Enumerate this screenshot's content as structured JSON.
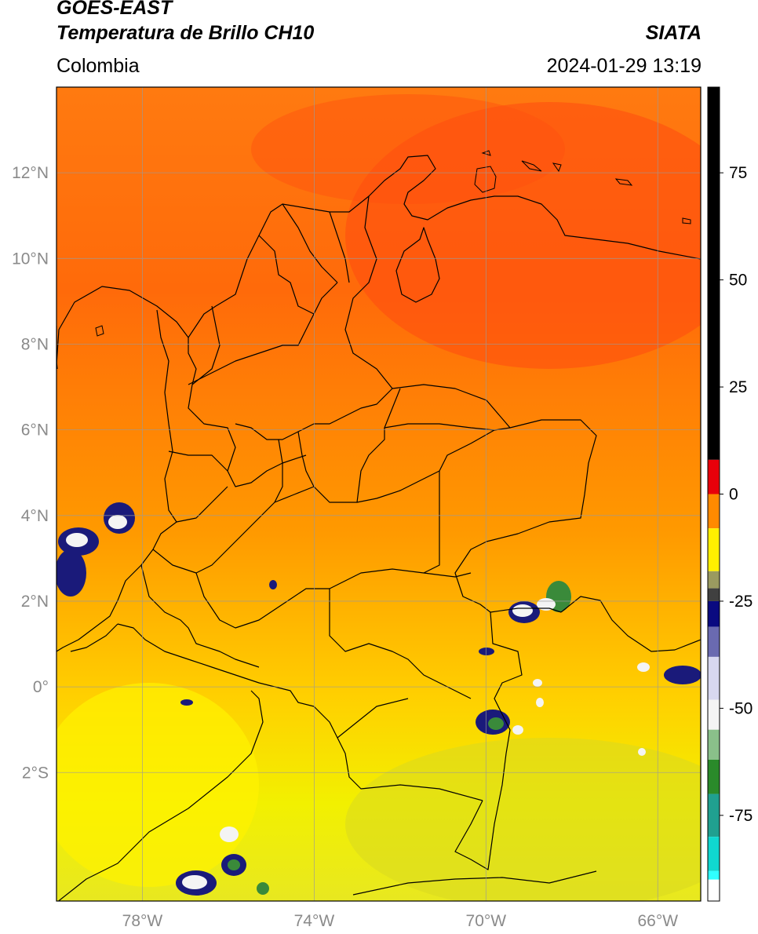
{
  "header": {
    "satellite": "GOES-EAST",
    "product": "Temperatura de Brillo CH10",
    "brand": "SIATA",
    "region": "Colombia",
    "datetime": "2024-01-29 13:19"
  },
  "map": {
    "lon_range": [
      -80,
      -65
    ],
    "lat_range": [
      -5,
      14
    ],
    "lat_labels": [
      {
        "lat": 12,
        "label": "12°N"
      },
      {
        "lat": 10,
        "label": "10°N"
      },
      {
        "lat": 8,
        "label": "8°N"
      },
      {
        "lat": 6,
        "label": "6°N"
      },
      {
        "lat": 4,
        "label": "4°N"
      },
      {
        "lat": 2,
        "label": "2°N"
      },
      {
        "lat": 0,
        "label": "0°"
      },
      {
        "lat": -2,
        "label": "2°S"
      }
    ],
    "lon_labels": [
      {
        "lon": -78,
        "label": "78°W"
      },
      {
        "lon": -74,
        "label": "74°W"
      },
      {
        "lon": -70,
        "label": "70°W"
      },
      {
        "lon": -66,
        "label": "66°W"
      }
    ],
    "colors": {
      "warm_north": "#ff4a10",
      "mid": "#ff9a00",
      "cool_south": "#fff000",
      "cloud_dark": "#1a1a7a",
      "cloud_white": "#f4f4f4",
      "cloud_green": "#3a8a3a",
      "border": "#000000",
      "grid": "#9a9a9a"
    }
  },
  "colorbar": {
    "ticks": [
      {
        "value": 75,
        "label": "75"
      },
      {
        "value": 50,
        "label": "50"
      },
      {
        "value": 25,
        "label": "25"
      },
      {
        "value": 0,
        "label": "0"
      },
      {
        "value": -25,
        "label": "-25"
      },
      {
        "value": -50,
        "label": "-50"
      },
      {
        "value": -75,
        "label": "-75"
      }
    ],
    "range": [
      -95,
      95
    ],
    "segments": [
      {
        "from": 8,
        "to": 95,
        "color": "#000000"
      },
      {
        "from": 0,
        "to": 8,
        "color": "#e8000a"
      },
      {
        "from": -8,
        "to": 0,
        "color": "#ff8a00"
      },
      {
        "from": -18,
        "to": -8,
        "color": "#fff000"
      },
      {
        "from": -22,
        "to": -18,
        "color": "#9a9a60"
      },
      {
        "from": -25,
        "to": -22,
        "color": "#404040"
      },
      {
        "from": -31,
        "to": -25,
        "color": "#0a0a80"
      },
      {
        "from": -38,
        "to": -31,
        "color": "#6a6ab0"
      },
      {
        "from": -48,
        "to": -38,
        "color": "#d8d8f0"
      },
      {
        "from": -55,
        "to": -48,
        "color": "#f4f4f4"
      },
      {
        "from": -62,
        "to": -55,
        "color": "#8ac08a"
      },
      {
        "from": -70,
        "to": -62,
        "color": "#2a8a2a"
      },
      {
        "from": -80,
        "to": -70,
        "color": "#20a090"
      },
      {
        "from": -88,
        "to": -80,
        "color": "#10d8d0"
      },
      {
        "from": -90,
        "to": -88,
        "color": "#30ffff"
      },
      {
        "from": -95,
        "to": -90,
        "color": "#ffffff"
      }
    ]
  }
}
